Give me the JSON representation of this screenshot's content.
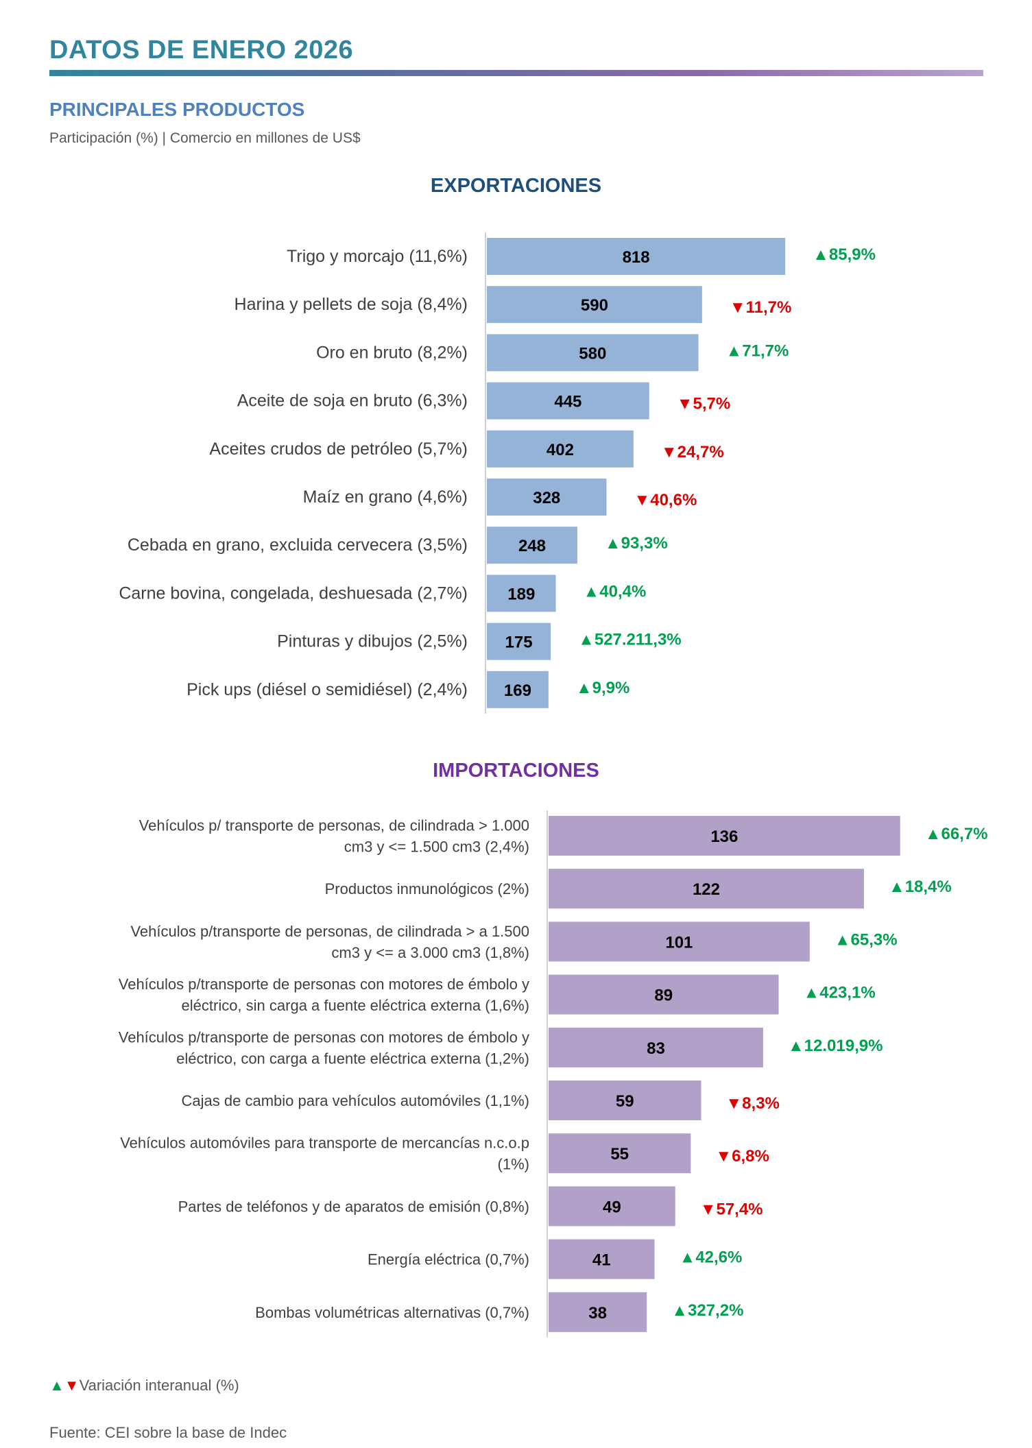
{
  "header": {
    "title": "DATOS DE ENERO 2026",
    "section_title": "PRINCIPALES PRODUCTOS",
    "subtitle": "Participación (%) | Comercio en millones de US$"
  },
  "colors": {
    "export_bar": "#95b3d7",
    "import_bar": "#b1a0c7",
    "up": "#00a050",
    "down": "#e00000"
  },
  "chart_data": [
    {
      "type": "bar",
      "orientation": "horizontal",
      "title": "EXPORTACIONES",
      "unit": "millones de US$",
      "categories": [
        "Trigo y morcajo  (11,6%)",
        "Harina y pellets de soja  (8,4%)",
        "Oro en bruto  (8,2%)",
        "Aceite de soja en bruto  (6,3%)",
        "Aceites crudos de petróleo (5,7%)",
        "Maíz en grano  (4,6%)",
        "Cebada en grano, excluida cervecera (3,5%)",
        "Carne bovina, congelada, deshuesada (2,7%)",
        "Pinturas y dibujos  (2,5%)",
        "Pick ups (diésel o semidiésel)  (2,4%)"
      ],
      "values": [
        818,
        590,
        580,
        445,
        402,
        328,
        248,
        189,
        175,
        169
      ],
      "variation_labels": [
        "85,9%",
        "11,7%",
        "71,7%",
        "5,7%",
        "24,7%",
        "40,6%",
        "93,3%",
        "40,4%",
        "527.211,3%",
        "9,9%"
      ],
      "variation_direction": [
        "up",
        "down",
        "up",
        "down",
        "down",
        "down",
        "up",
        "up",
        "up",
        "up"
      ]
    },
    {
      "type": "bar",
      "orientation": "horizontal",
      "title": "IMPORTACIONES",
      "unit": "millones de US$",
      "categories": [
        "Vehículos p/ transporte de personas, de cilindrada  > 1.000 cm3 y <= 1.500 cm3  (2,4%)",
        "Productos inmunológicos (2%)",
        "Vehículos p/transporte de personas, de cilindrada  > a 1.500 cm3 y <= a 3.000 cm3  (1,8%)",
        "Vehículos p/transporte de personas con motores de émbolo y eléctrico, sin carga a fuente eléctrica externa (1,6%)",
        "Vehículos p/transporte de personas con motores de émbolo y eléctrico, con carga a fuente eléctrica externa (1,2%)",
        "Cajas de cambio para vehículos automóviles  (1,1%)",
        "Vehículos automóviles para transporte de mercancías n.c.o.p (1%)",
        "Partes de teléfonos y de aparatos de emisión  (0,8%)",
        "Energía eléctrica  (0,7%)",
        "Bombas volumétricas alternativas  (0,7%)"
      ],
      "values": [
        136,
        122,
        101,
        89,
        83,
        59,
        55,
        49,
        41,
        38
      ],
      "variation_labels": [
        "66,7%",
        "18,4%",
        "65,3%",
        "423,1%",
        "12.019,9%",
        "8,3%",
        "6,8%",
        "57,4%",
        "42,6%",
        "327,2%"
      ],
      "variation_direction": [
        "up",
        "up",
        "up",
        "up",
        "up",
        "down",
        "down",
        "down",
        "up",
        "up"
      ]
    }
  ],
  "legend": {
    "up_symbol": "▲",
    "down_symbol": "▼",
    "label": "Variación interanual (%)"
  },
  "footer": {
    "source": "Fuente: CEI sobre la base de Indec"
  }
}
